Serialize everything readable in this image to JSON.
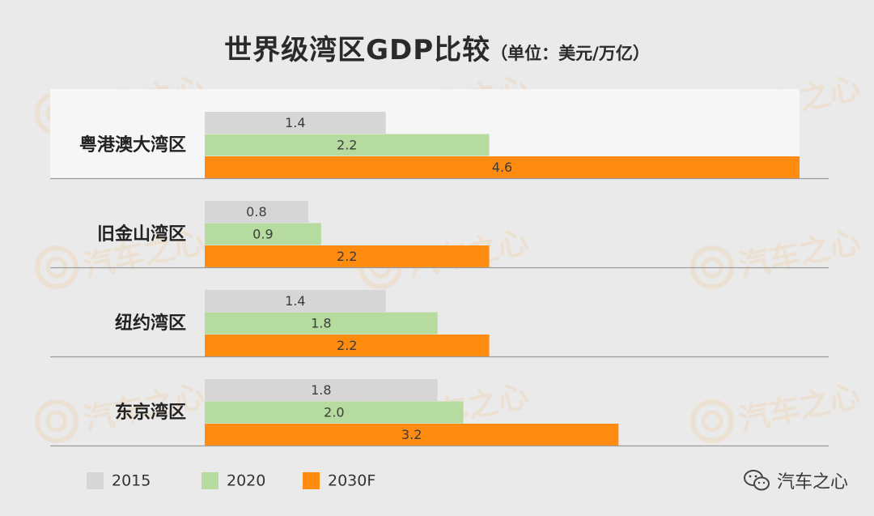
{
  "title": "世界级湾区GDP比较",
  "unit": "（单位：美元/万亿）",
  "brand": {
    "watermark": "汽车之心",
    "wordmark": "汽车之心"
  },
  "colors": {
    "2015": "#d6d6d6",
    "2020": "#b6db9f",
    "2030F": "#ff8c10",
    "band": "#f6f6f6",
    "separator": "#9b9b9b"
  },
  "chart_data": {
    "type": "bar",
    "orientation": "horizontal",
    "title": "世界级湾区GDP比较（单位：美元/万亿）",
    "categories": [
      "粤港澳大湾区",
      "旧金山湾区",
      "纽约湾区",
      "东京湾区"
    ],
    "series": [
      {
        "name": "2015",
        "values": [
          1.4,
          0.8,
          1.4,
          1.8
        ]
      },
      {
        "name": "2020",
        "values": [
          2.2,
          0.9,
          1.8,
          2.0
        ]
      },
      {
        "name": "2030F",
        "values": [
          4.6,
          2.2,
          2.2,
          3.2
        ]
      }
    ],
    "data_labels": [
      [
        "1.4",
        "0.8",
        "1.4",
        "1.8"
      ],
      [
        "2.2",
        "0.9",
        "1.8",
        "2.0"
      ],
      [
        "4.6",
        "2.2",
        "2.2",
        "3.2"
      ]
    ],
    "xlim": [
      0,
      4.6
    ],
    "highlighted_category": "粤港澳大湾区",
    "grid": false,
    "legend": {
      "position": "bottom-left",
      "entries": [
        "2015",
        "2020",
        "2030F"
      ]
    }
  }
}
